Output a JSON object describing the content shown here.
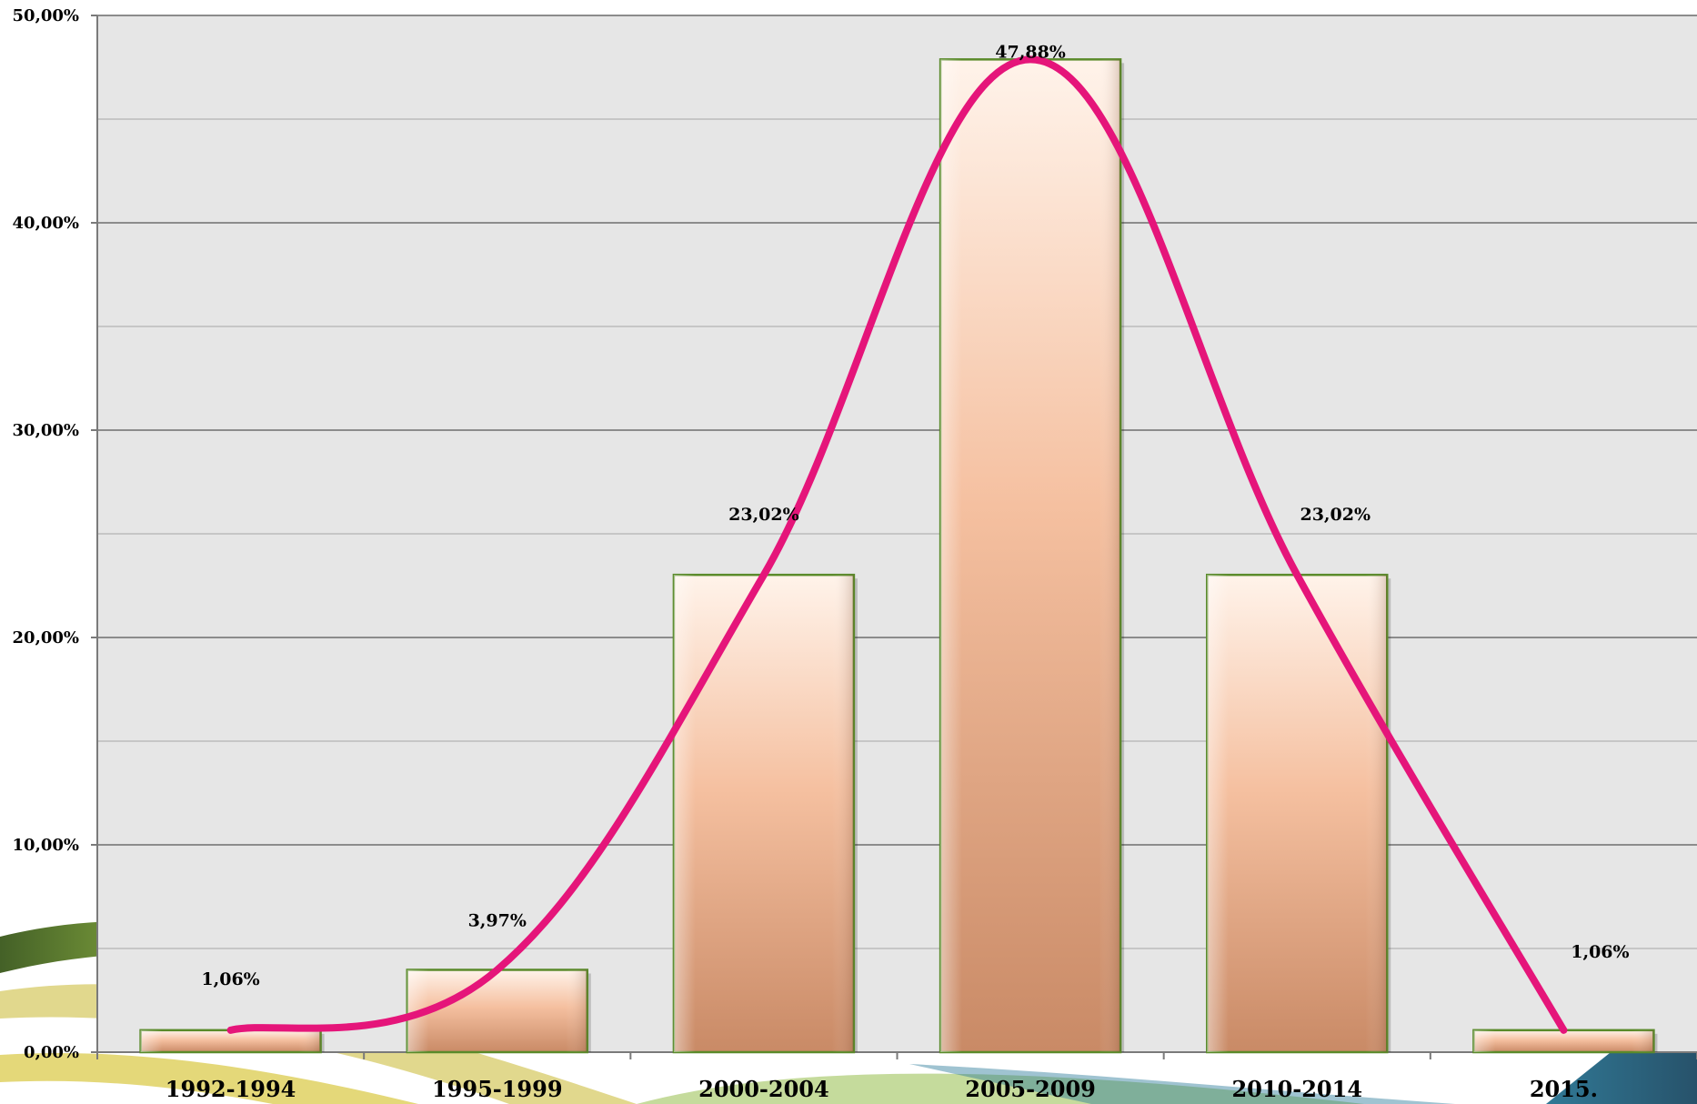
{
  "chart_data": {
    "type": "bar",
    "categories": [
      "1992-1994",
      "1995-1999",
      "2000-2004",
      "2005-2009",
      "2010-2014",
      "2015."
    ],
    "values": [
      1.06,
      3.97,
      23.02,
      47.88,
      23.02,
      1.06
    ],
    "data_labels": [
      "1,06%",
      "3,97%",
      "23,02%",
      "47,88%",
      "23,02%",
      "1,06%"
    ],
    "ylim": [
      0,
      50
    ],
    "y_ticks": [
      0,
      10,
      20,
      30,
      40,
      50
    ],
    "y_tick_labels": [
      "0,00%",
      "10,00%",
      "20,00%",
      "30,00%",
      "40,00%",
      "50,00%"
    ],
    "grid": true,
    "trend_line": true,
    "colors": {
      "plot_background": "#e6e6e6",
      "gridline": "#8c8c8c",
      "bar_fill_top": "#fff3ea",
      "bar_fill_mid": "#f5c0a0",
      "bar_fill_bottom": "#c98a66",
      "bar_border": "#5a8a2a",
      "trend_line": "#e5157a"
    }
  }
}
